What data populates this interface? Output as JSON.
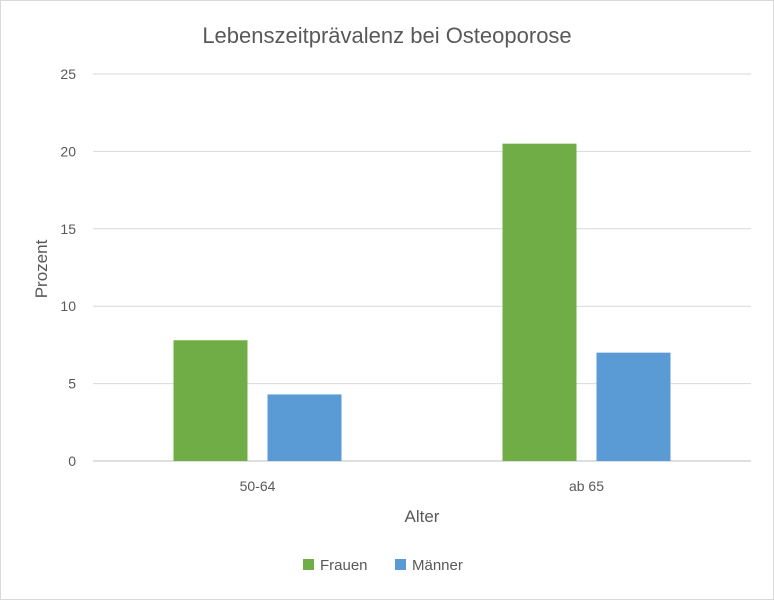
{
  "chart_data": {
    "type": "bar",
    "title": "Lebenszeitprävalenz bei Osteoporose",
    "xlabel": "Alter",
    "ylabel": "Prozent",
    "categories": [
      "50-64",
      "ab 65"
    ],
    "series": [
      {
        "name": "Frauen",
        "values": [
          7.8,
          20.5
        ],
        "color": "#70ad47"
      },
      {
        "name": "Männer",
        "values": [
          4.3,
          7.0
        ],
        "color": "#5b9bd5"
      }
    ],
    "ylim": [
      0,
      25
    ],
    "yticks": [
      "0",
      "5",
      "10",
      "15",
      "20",
      "25"
    ],
    "grid": true,
    "legend_position": "bottom"
  }
}
